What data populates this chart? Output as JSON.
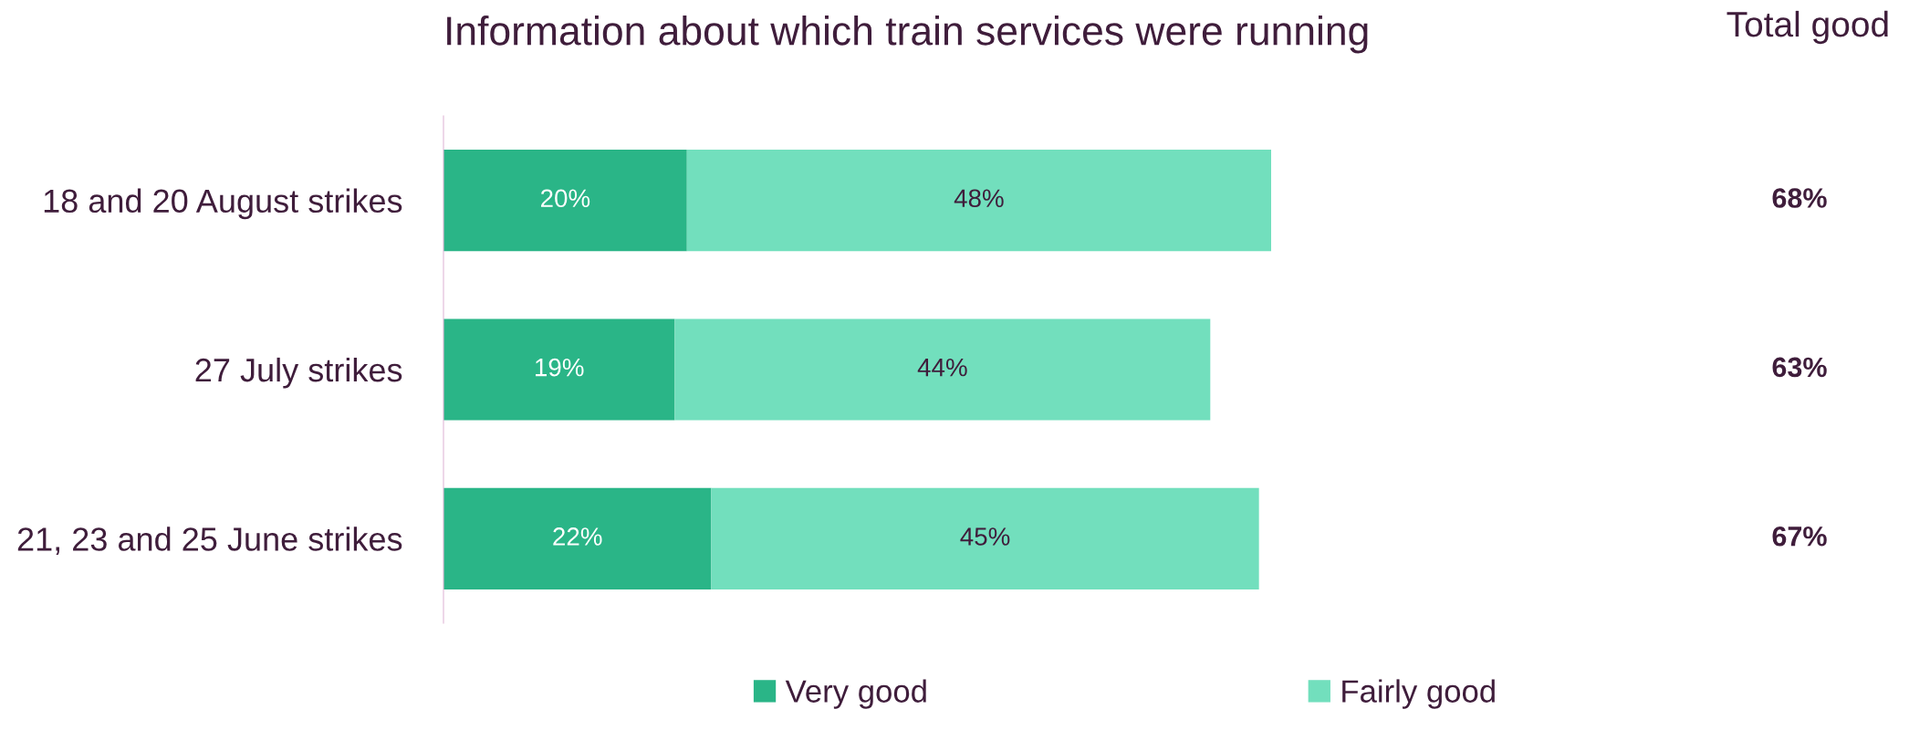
{
  "chart_data": {
    "type": "bar",
    "orientation": "horizontal",
    "stacked": true,
    "title": "Information about which train services were running",
    "categories": [
      "18 and 20 August strikes",
      "27 July strikes",
      "21, 23 and 25 June strikes"
    ],
    "series": [
      {
        "name": "Very good",
        "color": "#2ab587",
        "values": [
          20,
          19,
          22
        ],
        "value_labels": [
          "20%",
          "19%",
          "22%"
        ]
      },
      {
        "name": "Fairly good",
        "color": "#72dfbd",
        "values": [
          48,
          44,
          45
        ],
        "value_labels": [
          "48%",
          "44%",
          "45%"
        ]
      }
    ],
    "annotations": [
      "Total good",
      "68%",
      "63%",
      "67%"
    ],
    "legend": "bottom",
    "tick_labels": "y",
    "grid": false
  }
}
